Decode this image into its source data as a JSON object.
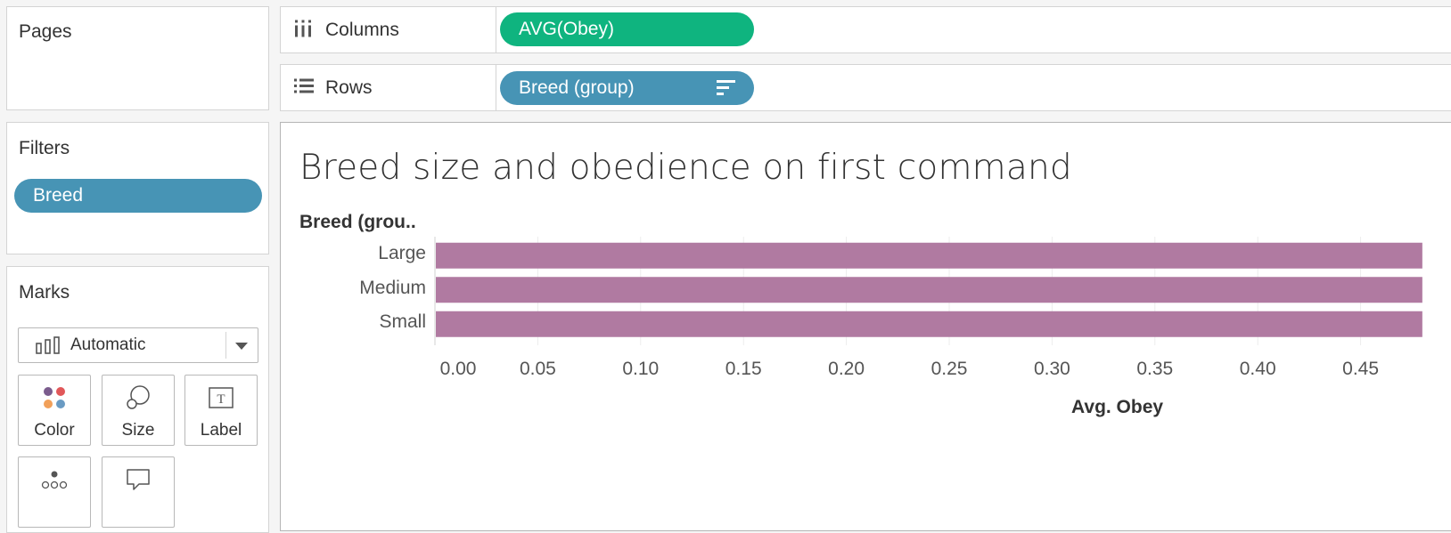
{
  "left_panel": {
    "pages": {
      "title": "Pages"
    },
    "filters": {
      "title": "Filters",
      "pills": [
        "Breed"
      ]
    },
    "marks": {
      "title": "Marks",
      "mark_type": "Automatic",
      "buttons": [
        {
          "label": "Color",
          "icon": "color-icon"
        },
        {
          "label": "Size",
          "icon": "size-icon"
        },
        {
          "label": "Label",
          "icon": "label-icon"
        },
        {
          "label": "",
          "icon": "detail-icon"
        },
        {
          "label": "",
          "icon": "tooltip-icon"
        }
      ]
    }
  },
  "shelves": {
    "columns": {
      "label": "Columns",
      "pill": "AVG(Obey)",
      "pill_color": "#0fb47f"
    },
    "rows": {
      "label": "Rows",
      "pill": "Breed (group)",
      "pill_color": "#4794b5"
    }
  },
  "viz": {
    "title": "Breed size and obedience on first command",
    "row_header": "Breed (grou..",
    "bar_color": "#b07aa1"
  },
  "chart_data": {
    "type": "bar",
    "orientation": "horizontal",
    "categories": [
      "Large",
      "Medium",
      "Small"
    ],
    "values": [
      0.48,
      0.48,
      0.48
    ],
    "xlabel": "Avg. Obey",
    "ylabel": "Breed (grou..",
    "x_ticks": [
      "0.00",
      "0.05",
      "0.10",
      "0.15",
      "0.20",
      "0.25",
      "0.30",
      "0.35",
      "0.40",
      "0.45"
    ],
    "xlim": [
      0,
      0.45
    ],
    "grid": true
  }
}
